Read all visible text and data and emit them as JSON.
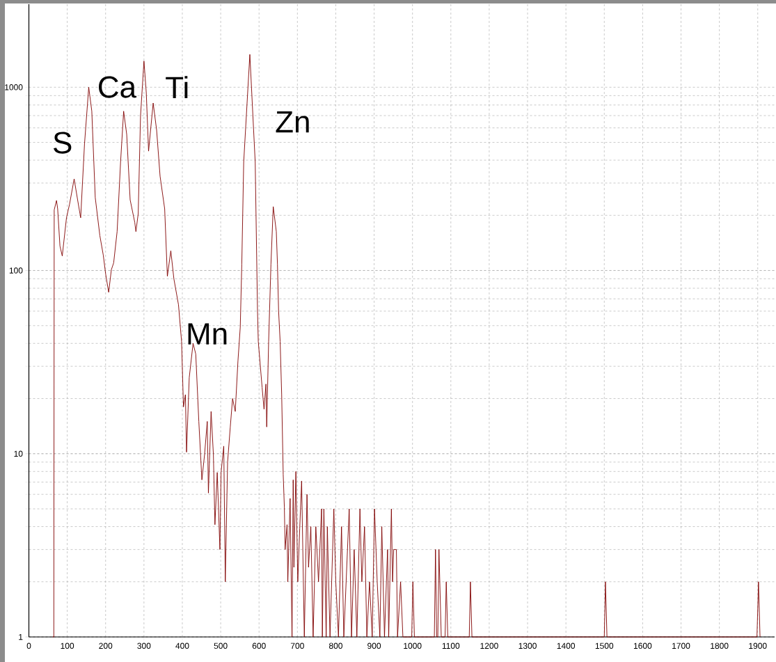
{
  "chart_data": {
    "type": "line",
    "color": "#800000",
    "log": "y",
    "grid": true,
    "line_style": "solid",
    "marker": "none",
    "x": [
      62,
      65,
      66,
      72,
      75,
      81,
      87,
      98,
      106,
      118,
      127,
      135,
      145,
      156,
      164,
      173,
      185,
      194,
      200,
      208,
      215,
      221,
      230,
      239,
      247,
      255,
      264,
      276,
      279,
      285,
      291,
      300,
      306,
      312,
      324,
      333,
      342,
      354,
      361,
      370,
      378,
      390,
      398,
      403,
      408,
      411,
      418,
      428,
      435,
      443,
      451,
      458,
      465,
      468,
      475,
      481,
      485,
      491,
      498,
      501,
      508,
      512,
      518,
      525,
      531,
      538,
      545,
      551,
      555,
      560,
      576,
      590,
      596,
      598,
      608,
      613,
      618,
      620,
      625,
      631,
      637,
      645,
      648,
      651,
      655,
      659,
      663,
      666,
      668,
      673,
      675,
      681,
      686,
      689,
      691,
      696,
      701,
      706,
      711,
      718,
      725,
      729,
      735,
      741,
      748,
      755,
      763,
      765,
      769,
      775,
      778,
      785,
      795,
      800,
      807,
      815,
      821,
      835,
      841,
      848,
      855,
      863,
      868,
      875,
      881,
      888,
      895,
      901,
      908,
      915,
      920,
      927,
      935,
      938,
      945,
      948,
      951,
      958,
      961,
      969,
      975,
      998,
      1001,
      1005,
      1057,
      1060,
      1063,
      1066,
      1069,
      1075,
      1085,
      1088,
      1092,
      1148,
      1151,
      1155,
      1500,
      1503,
      1507,
      1898,
      1902,
      1906
    ],
    "values": [
      1,
      1,
      214,
      241,
      217,
      136,
      120,
      194,
      230,
      316,
      243,
      194,
      490,
      1000,
      740,
      250,
      155,
      121,
      96,
      76,
      101,
      110,
      163,
      390,
      740,
      553,
      243,
      183,
      163,
      204,
      695,
      1390,
      935,
      448,
      820,
      583,
      327,
      217,
      93,
      128,
      90,
      65,
      41,
      18,
      21,
      10.2,
      26,
      40,
      35,
      15,
      7.2,
      9.9,
      15,
      6.1,
      17,
      9.9,
      4.1,
      7.9,
      3,
      7.9,
      11,
      2,
      9,
      14,
      20,
      17,
      32,
      49,
      108,
      390,
      1510,
      390,
      60,
      41,
      23,
      17.5,
      24,
      14,
      41,
      108,
      223,
      163,
      108,
      60,
      41,
      21,
      7.7,
      5.1,
      3,
      4.1,
      2,
      5.7,
      1,
      7.2,
      2.4,
      8,
      2,
      3.9,
      7.1,
      1,
      6,
      2.4,
      4,
      1,
      4,
      2,
      5,
      1,
      5,
      1,
      4,
      1,
      5,
      2,
      1,
      4,
      1,
      5,
      1,
      3,
      1,
      5,
      2,
      4,
      1,
      2,
      1,
      5,
      2,
      1,
      4,
      1,
      3,
      1,
      5,
      2,
      3,
      3,
      1,
      2,
      1,
      1,
      2,
      1,
      1,
      3,
      1,
      1,
      3,
      1,
      1,
      2,
      1,
      1,
      2,
      1,
      1,
      2,
      1,
      1,
      2,
      1
    ],
    "xlim": [
      0,
      1944
    ],
    "ylim": [
      1,
      2840
    ],
    "xticks": [
      0,
      100,
      200,
      300,
      400,
      500,
      600,
      700,
      800,
      900,
      1000,
      1100,
      1200,
      1300,
      1400,
      1500,
      1600,
      1700,
      1800,
      1900
    ],
    "yticks": [
      1,
      10,
      100,
      1000
    ],
    "annotations": [
      "S",
      "Ca",
      "Ti",
      "Mn",
      "Zn"
    ]
  }
}
